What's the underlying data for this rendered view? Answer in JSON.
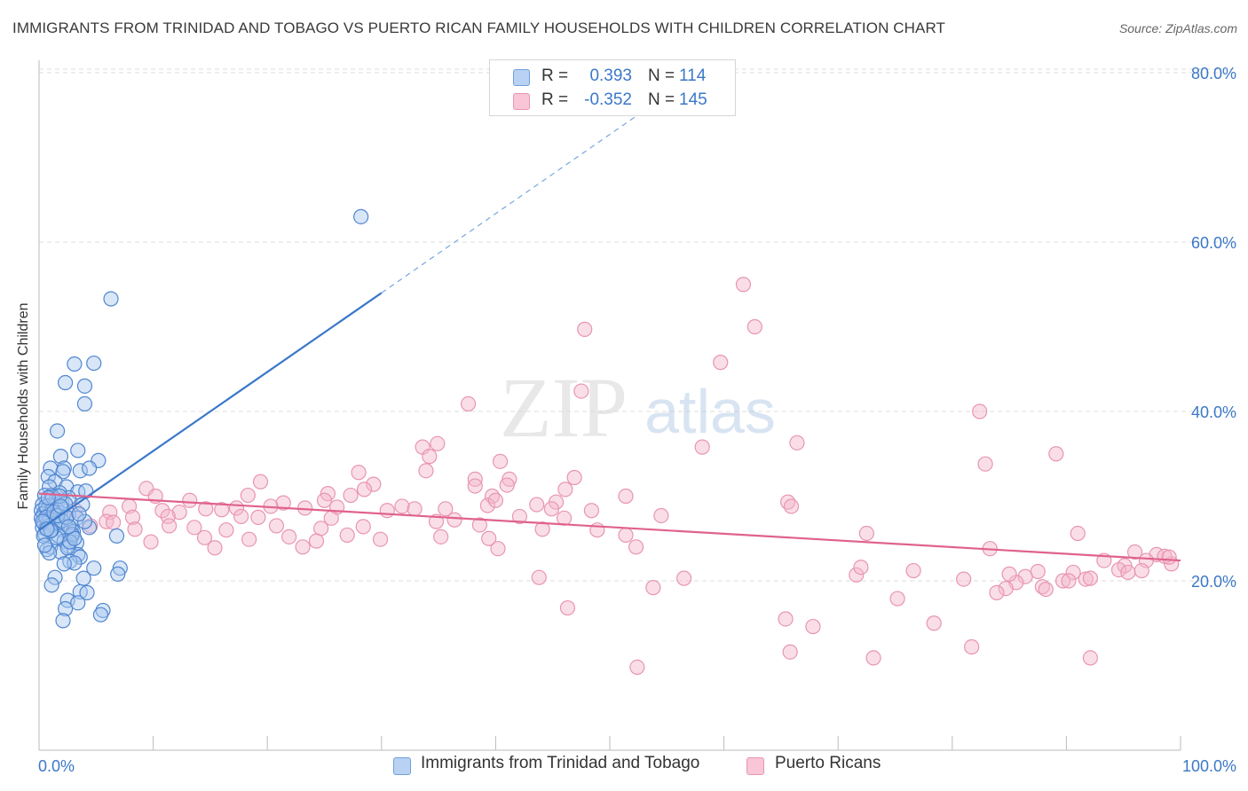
{
  "title": "IMMIGRANTS FROM TRINIDAD AND TOBAGO VS PUERTO RICAN FAMILY HOUSEHOLDS WITH CHILDREN CORRELATION CHART",
  "source": "Source: ZipAtlas.com",
  "watermark": {
    "zip": "ZIP",
    "atlas": "atlas"
  },
  "legend_top": [
    {
      "r_label": "R =",
      "r_value": "0.393",
      "n_label": "N =",
      "n_value": "114"
    },
    {
      "r_label": "R =",
      "r_value": "-0.352",
      "n_label": "N =",
      "n_value": "145"
    }
  ],
  "colors": {
    "blue": "#3a78c9",
    "blue_fill": "#a9c8f0",
    "pink": "#e0628c",
    "pink_fill": "#f4b6ca",
    "axis_text": "#3b78c8"
  },
  "chart_data": {
    "type": "scatter",
    "title": "IMMIGRANTS FROM TRINIDAD AND TOBAGO VS PUERTO RICAN FAMILY HOUSEHOLDS WITH CHILDREN CORRELATION CHART",
    "xlabel": "",
    "ylabel": "Family Households with Children",
    "xlim": [
      0,
      100
    ],
    "ylim": [
      0,
      83
    ],
    "x_tick_labels": [
      "0.0%",
      "100.0%"
    ],
    "y_ticks": [
      20,
      40,
      60,
      80
    ],
    "y_tick_labels": [
      "20.0%",
      "40.0%",
      "60.0%",
      "80.0%"
    ],
    "grid": true,
    "legend_position": "bottom",
    "series": [
      {
        "name": "Immigrants from Trinidad and Tobago",
        "color": "#3a78c9",
        "r": 0.393,
        "n": 114,
        "trend": {
          "x0": 0,
          "y0": 26.0,
          "x1": 30,
          "y1": 54.0,
          "dashed_to_x": 58,
          "dashed_to_y": 80.2
        },
        "points": [
          [
            28.2,
            63
          ],
          [
            6.3,
            53.3
          ],
          [
            3.1,
            45.6
          ],
          [
            4.8,
            45.7
          ],
          [
            2.3,
            43.4
          ],
          [
            4.0,
            43.0
          ],
          [
            4.0,
            40.9
          ],
          [
            1.6,
            37.7
          ],
          [
            3.4,
            35.4
          ],
          [
            5.2,
            34.2
          ],
          [
            1.9,
            34.7
          ],
          [
            1.0,
            33.3
          ],
          [
            2.2,
            33.3
          ],
          [
            2.1,
            32.9
          ],
          [
            3.6,
            33.0
          ],
          [
            4.4,
            33.3
          ],
          [
            0.8,
            32.3
          ],
          [
            1.4,
            31.7
          ],
          [
            0.9,
            31.1
          ],
          [
            2.4,
            31.1
          ],
          [
            1.8,
            30.4
          ],
          [
            3.4,
            30.5
          ],
          [
            0.5,
            30.1
          ],
          [
            1.1,
            30.1
          ],
          [
            1.5,
            29.6
          ],
          [
            2.0,
            29.3
          ],
          [
            2.6,
            29.8
          ],
          [
            0.3,
            29.0
          ],
          [
            0.9,
            28.9
          ],
          [
            1.4,
            28.9
          ],
          [
            2.0,
            28.6
          ],
          [
            0.2,
            28.3
          ],
          [
            0.7,
            28.4
          ],
          [
            1.1,
            28.3
          ],
          [
            1.6,
            28.4
          ],
          [
            0.4,
            27.9
          ],
          [
            0.9,
            27.8
          ],
          [
            1.4,
            27.7
          ],
          [
            1.9,
            28.0
          ],
          [
            2.6,
            27.9
          ],
          [
            0.2,
            27.4
          ],
          [
            0.6,
            27.3
          ],
          [
            1.0,
            27.3
          ],
          [
            1.3,
            27.1
          ],
          [
            0.4,
            26.8
          ],
          [
            0.8,
            26.9
          ],
          [
            1.2,
            26.7
          ],
          [
            1.6,
            26.6
          ],
          [
            0.3,
            26.3
          ],
          [
            0.6,
            26.2
          ],
          [
            0.9,
            26.5
          ],
          [
            2.0,
            26.0
          ],
          [
            2.8,
            26.2
          ],
          [
            4.4,
            26.3
          ],
          [
            3.0,
            25.8
          ],
          [
            0.5,
            25.5
          ],
          [
            1.7,
            25.3
          ],
          [
            2.9,
            25.3
          ],
          [
            6.8,
            25.3
          ],
          [
            2.2,
            24.7
          ],
          [
            3.3,
            24.5
          ],
          [
            1.0,
            24.0
          ],
          [
            2.6,
            24.1
          ],
          [
            0.7,
            23.7
          ],
          [
            1.9,
            23.4
          ],
          [
            3.4,
            23.1
          ],
          [
            3.6,
            22.8
          ],
          [
            2.7,
            22.3
          ],
          [
            3.1,
            22.1
          ],
          [
            2.2,
            22.0
          ],
          [
            4.8,
            21.5
          ],
          [
            7.1,
            21.5
          ],
          [
            6.9,
            20.8
          ],
          [
            1.4,
            20.4
          ],
          [
            3.9,
            20.3
          ],
          [
            1.1,
            19.5
          ],
          [
            3.6,
            18.7
          ],
          [
            4.2,
            18.6
          ],
          [
            2.5,
            17.7
          ],
          [
            3.4,
            17.4
          ],
          [
            2.3,
            16.7
          ],
          [
            5.6,
            16.5
          ],
          [
            5.4,
            16.0
          ],
          [
            2.1,
            15.3
          ],
          [
            4.1,
            30.6
          ],
          [
            0.6,
            28.8
          ],
          [
            1.7,
            26.9
          ],
          [
            1.2,
            29.9
          ],
          [
            2.3,
            29.1
          ],
          [
            2.9,
            25.5
          ],
          [
            3.3,
            27.4
          ],
          [
            0.4,
            25.3
          ],
          [
            1.5,
            25.1
          ],
          [
            2.5,
            23.9
          ],
          [
            0.9,
            23.3
          ],
          [
            4.0,
            27.0
          ],
          [
            1.8,
            30.0
          ],
          [
            3.8,
            29.0
          ],
          [
            0.6,
            27.5
          ],
          [
            1.1,
            26.0
          ],
          [
            2.7,
            24.6
          ],
          [
            0.8,
            29.8
          ],
          [
            1.3,
            28.1
          ],
          [
            2.0,
            27.1
          ],
          [
            3.1,
            25.0
          ],
          [
            0.5,
            24.2
          ],
          [
            1.6,
            27.7
          ],
          [
            2.4,
            27.5
          ],
          [
            0.3,
            27.0
          ],
          [
            1.0,
            25.9
          ],
          [
            1.9,
            28.8
          ],
          [
            2.6,
            26.4
          ],
          [
            0.7,
            26.1
          ],
          [
            3.5,
            27.9
          ]
        ]
      },
      {
        "name": "Puerto Ricans",
        "color": "#e0628c",
        "r": -0.352,
        "n": 145,
        "trend": {
          "x0": 0,
          "y0": 30.3,
          "x1": 100,
          "y1": 22.4
        },
        "points": [
          [
            61.7,
            55
          ],
          [
            62.7,
            50
          ],
          [
            47.8,
            49.7
          ],
          [
            59.7,
            45.8
          ],
          [
            47.5,
            42.4
          ],
          [
            37.6,
            40.9
          ],
          [
            82.4,
            40.0
          ],
          [
            34.9,
            36.2
          ],
          [
            66.4,
            36.3
          ],
          [
            58.1,
            35.8
          ],
          [
            33.6,
            35.8
          ],
          [
            34.2,
            34.7
          ],
          [
            40.4,
            34.1
          ],
          [
            82.9,
            33.8
          ],
          [
            89.1,
            35.0
          ],
          [
            33.9,
            33.0
          ],
          [
            28.0,
            32.8
          ],
          [
            38.2,
            32.0
          ],
          [
            41.2,
            32.0
          ],
          [
            46.9,
            32.2
          ],
          [
            41.0,
            31.3
          ],
          [
            19.4,
            31.7
          ],
          [
            29.3,
            31.4
          ],
          [
            28.5,
            30.8
          ],
          [
            46.1,
            30.8
          ],
          [
            9.4,
            30.9
          ],
          [
            10.2,
            30.0
          ],
          [
            18.3,
            30.1
          ],
          [
            25.3,
            30.3
          ],
          [
            27.3,
            30.1
          ],
          [
            39.7,
            30.0
          ],
          [
            51.4,
            30.0
          ],
          [
            7.9,
            28.8
          ],
          [
            13.2,
            29.5
          ],
          [
            21.4,
            29.2
          ],
          [
            25.0,
            29.5
          ],
          [
            31.8,
            28.8
          ],
          [
            39.3,
            28.9
          ],
          [
            40.0,
            29.5
          ],
          [
            43.6,
            29.0
          ],
          [
            45.3,
            29.3
          ],
          [
            65.6,
            29.3
          ],
          [
            3.2,
            28.3
          ],
          [
            6.2,
            28.1
          ],
          [
            10.8,
            28.3
          ],
          [
            12.3,
            28.1
          ],
          [
            14.6,
            28.5
          ],
          [
            16.0,
            28.4
          ],
          [
            17.3,
            28.6
          ],
          [
            20.3,
            28.8
          ],
          [
            23.3,
            28.6
          ],
          [
            26.1,
            28.7
          ],
          [
            30.5,
            28.3
          ],
          [
            32.9,
            28.5
          ],
          [
            35.6,
            28.5
          ],
          [
            44.9,
            28.5
          ],
          [
            48.4,
            28.3
          ],
          [
            65.9,
            28.8
          ],
          [
            8.2,
            27.5
          ],
          [
            11.3,
            27.6
          ],
          [
            17.7,
            27.6
          ],
          [
            19.2,
            27.5
          ],
          [
            25.6,
            27.4
          ],
          [
            36.4,
            27.2
          ],
          [
            42.1,
            27.6
          ],
          [
            46.0,
            27.4
          ],
          [
            5.9,
            27.0
          ],
          [
            6.5,
            26.9
          ],
          [
            11.4,
            26.5
          ],
          [
            13.6,
            26.3
          ],
          [
            20.8,
            26.5
          ],
          [
            24.7,
            26.2
          ],
          [
            28.4,
            26.4
          ],
          [
            34.8,
            27.0
          ],
          [
            38.6,
            26.6
          ],
          [
            44.1,
            26.1
          ],
          [
            54.5,
            27.7
          ],
          [
            4.5,
            26.5
          ],
          [
            8.4,
            26.1
          ],
          [
            9.8,
            24.6
          ],
          [
            14.5,
            25.1
          ],
          [
            16.4,
            26.0
          ],
          [
            18.4,
            24.9
          ],
          [
            21.9,
            25.2
          ],
          [
            27.0,
            25.4
          ],
          [
            29.9,
            24.9
          ],
          [
            35.2,
            25.2
          ],
          [
            39.4,
            25.0
          ],
          [
            48.9,
            26.0
          ],
          [
            51.4,
            25.4
          ],
          [
            72.5,
            25.6
          ],
          [
            91.0,
            25.6
          ],
          [
            15.4,
            23.9
          ],
          [
            23.1,
            24.0
          ],
          [
            24.3,
            24.7
          ],
          [
            40.2,
            23.8
          ],
          [
            52.3,
            24.0
          ],
          [
            83.3,
            23.8
          ],
          [
            96.0,
            23.4
          ],
          [
            97.9,
            23.1
          ],
          [
            99.2,
            22.0
          ],
          [
            97.0,
            22.4
          ],
          [
            95.1,
            21.8
          ],
          [
            94.6,
            21.3
          ],
          [
            93.3,
            22.4
          ],
          [
            91.7,
            20.2
          ],
          [
            90.6,
            21.0
          ],
          [
            89.7,
            20.0
          ],
          [
            87.5,
            21.1
          ],
          [
            86.4,
            20.5
          ],
          [
            85.6,
            19.8
          ],
          [
            85.0,
            20.8
          ],
          [
            96.6,
            21.2
          ],
          [
            98.6,
            22.9
          ],
          [
            99.0,
            22.8
          ],
          [
            76.6,
            21.2
          ],
          [
            71.6,
            20.7
          ],
          [
            72.0,
            21.6
          ],
          [
            81.0,
            20.2
          ],
          [
            87.9,
            19.3
          ],
          [
            88.2,
            19.0
          ],
          [
            84.7,
            19.1
          ],
          [
            83.9,
            18.6
          ],
          [
            95.4,
            21.0
          ],
          [
            92.1,
            20.3
          ],
          [
            43.8,
            20.4
          ],
          [
            56.5,
            20.3
          ],
          [
            53.8,
            19.2
          ],
          [
            75.2,
            17.9
          ],
          [
            65.4,
            15.5
          ],
          [
            78.4,
            15.0
          ],
          [
            67.8,
            14.6
          ],
          [
            81.7,
            12.2
          ],
          [
            65.8,
            11.6
          ],
          [
            73.1,
            10.9
          ],
          [
            92.1,
            10.9
          ],
          [
            52.4,
            9.8
          ],
          [
            46.3,
            16.8
          ],
          [
            38.2,
            31.2
          ],
          [
            90.2,
            20.0
          ]
        ]
      }
    ]
  }
}
